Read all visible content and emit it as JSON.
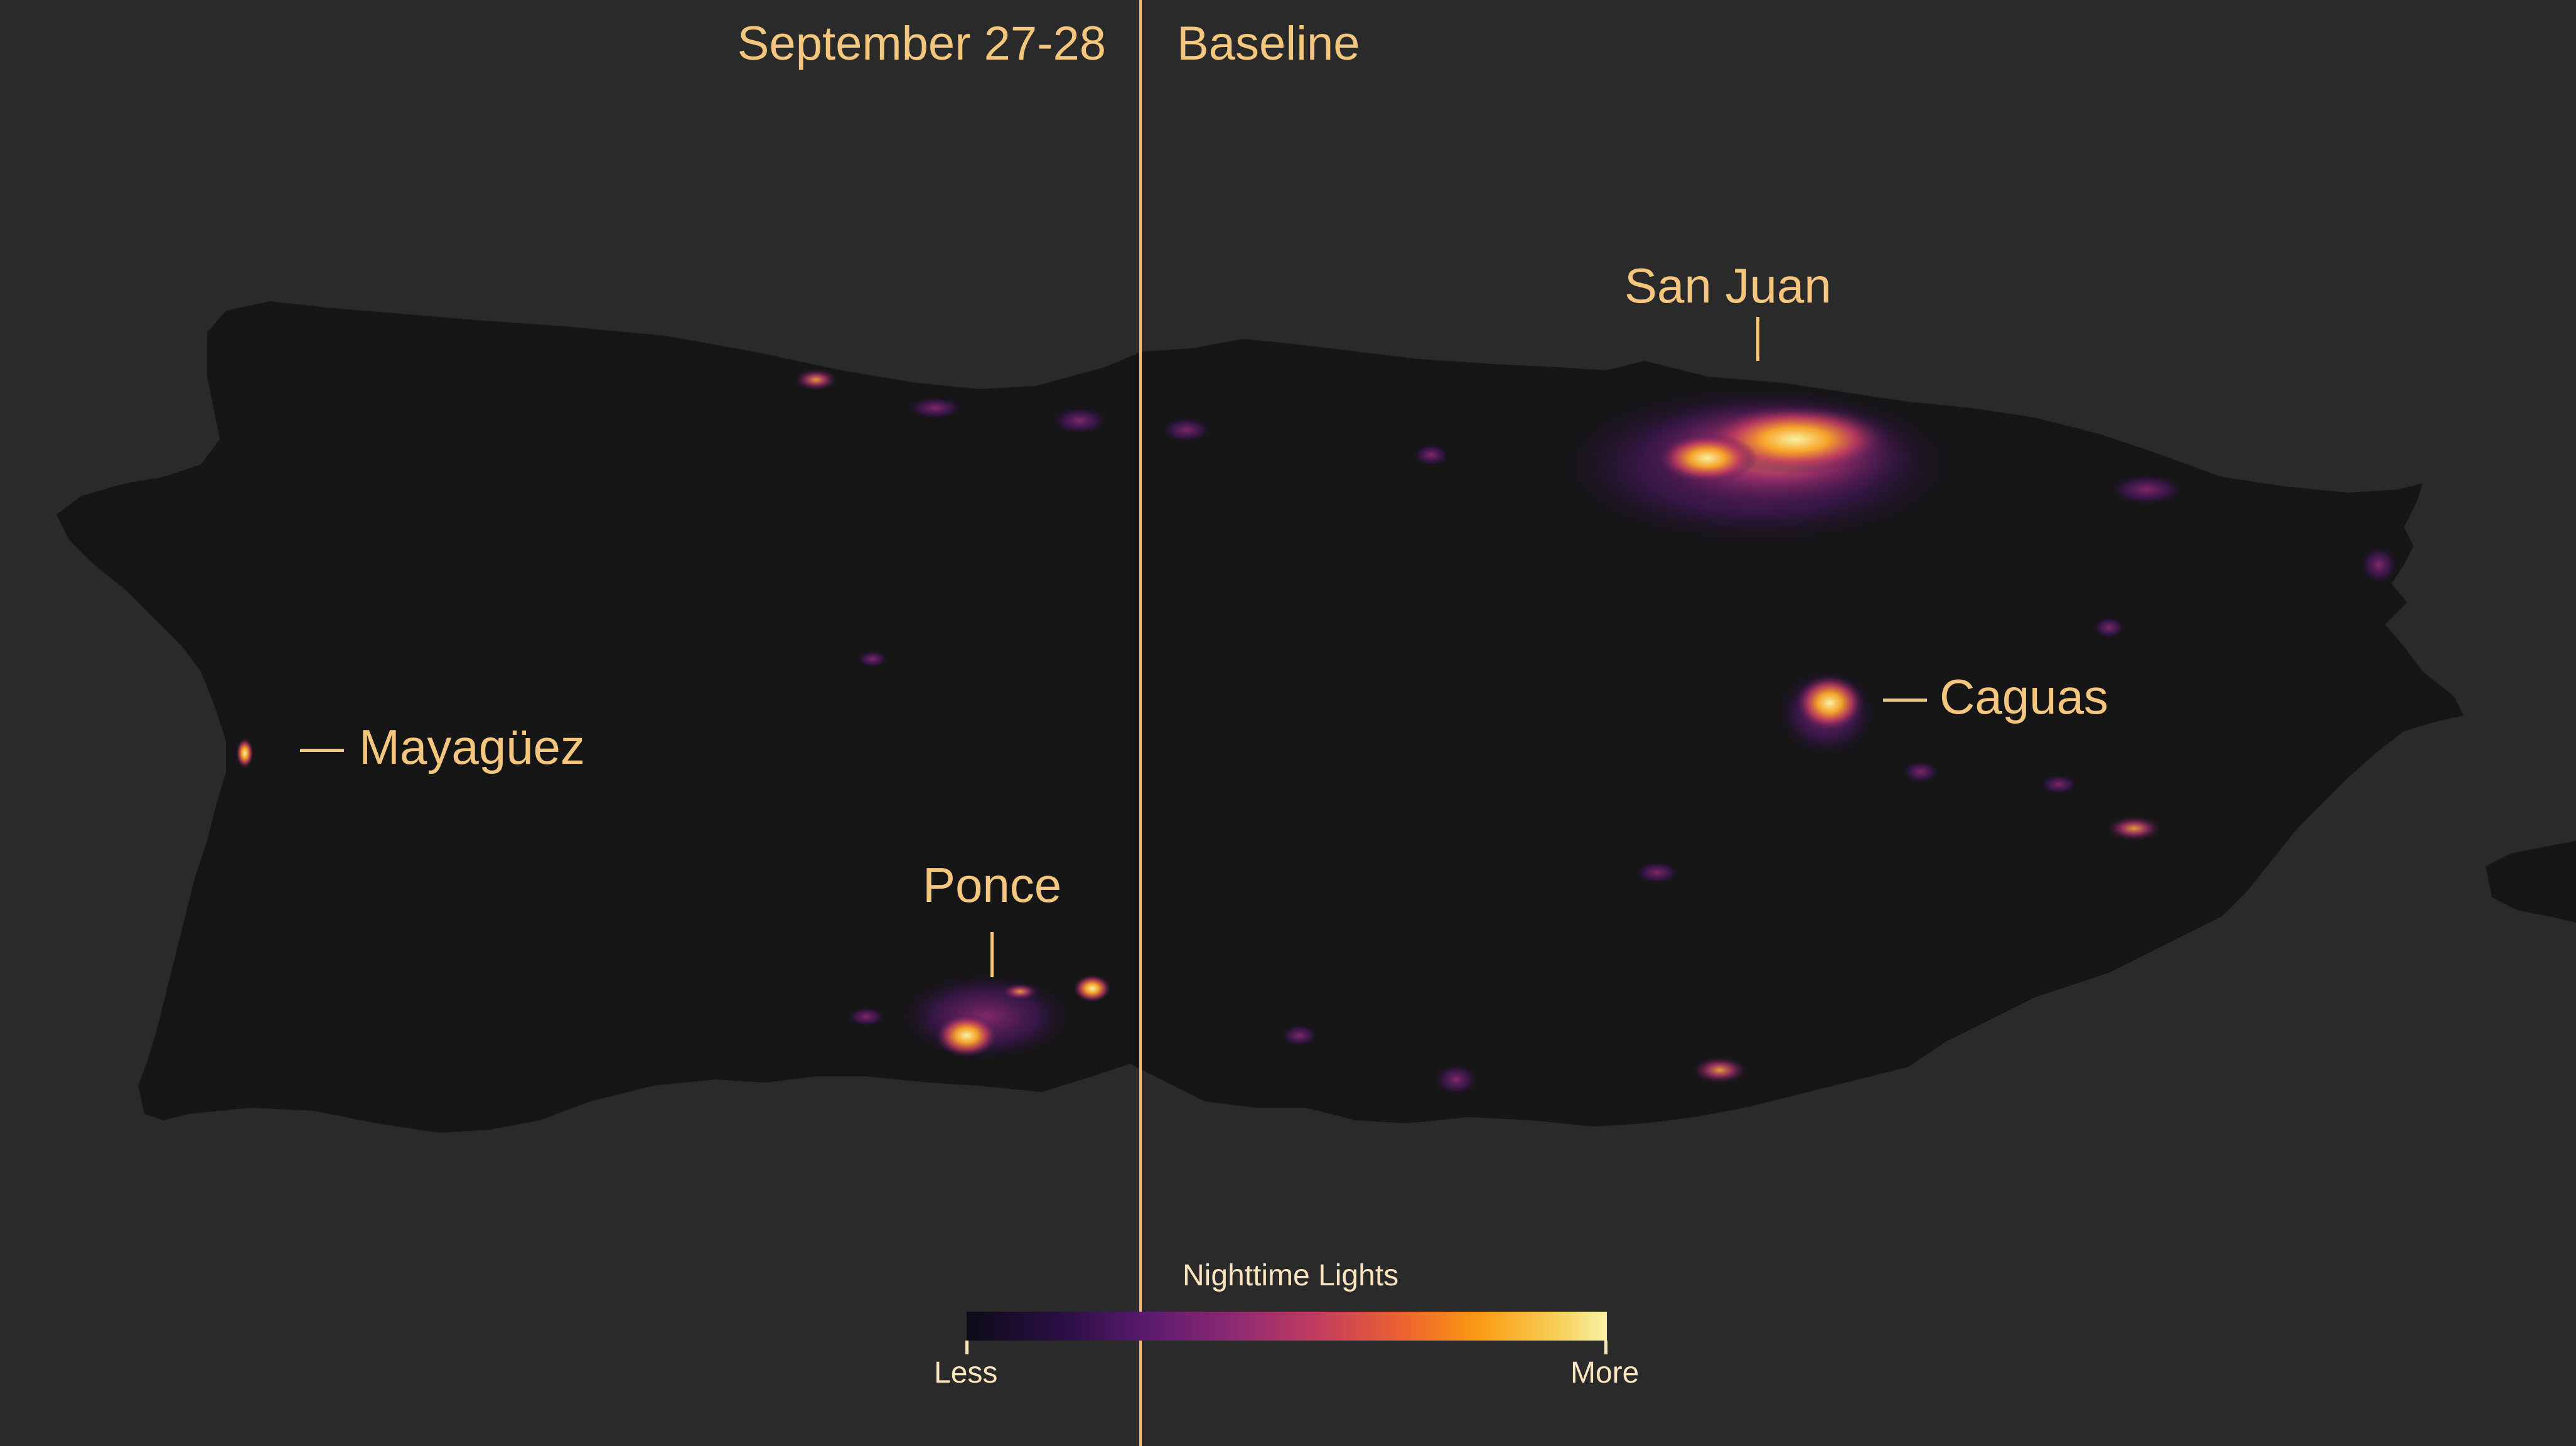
{
  "header": {
    "left_label": "September 27-28",
    "right_label": "Baseline"
  },
  "cities": {
    "san_juan": "San Juan",
    "caguas": "Caguas",
    "mayaguez": "Mayagüez",
    "ponce": "Ponce"
  },
  "legend": {
    "title": "Nighttime Lights",
    "min_label": "Less",
    "max_label": "More",
    "colors": [
      "#0d0b18",
      "#2a0f44",
      "#5a1a6e",
      "#8e2a73",
      "#c43c5e",
      "#ec6230",
      "#fb9a12",
      "#f6cd55",
      "#f9f2a4"
    ]
  },
  "colors": {
    "background": "#2a2a2a",
    "land": "#161616",
    "accent": "#f5c77e"
  }
}
